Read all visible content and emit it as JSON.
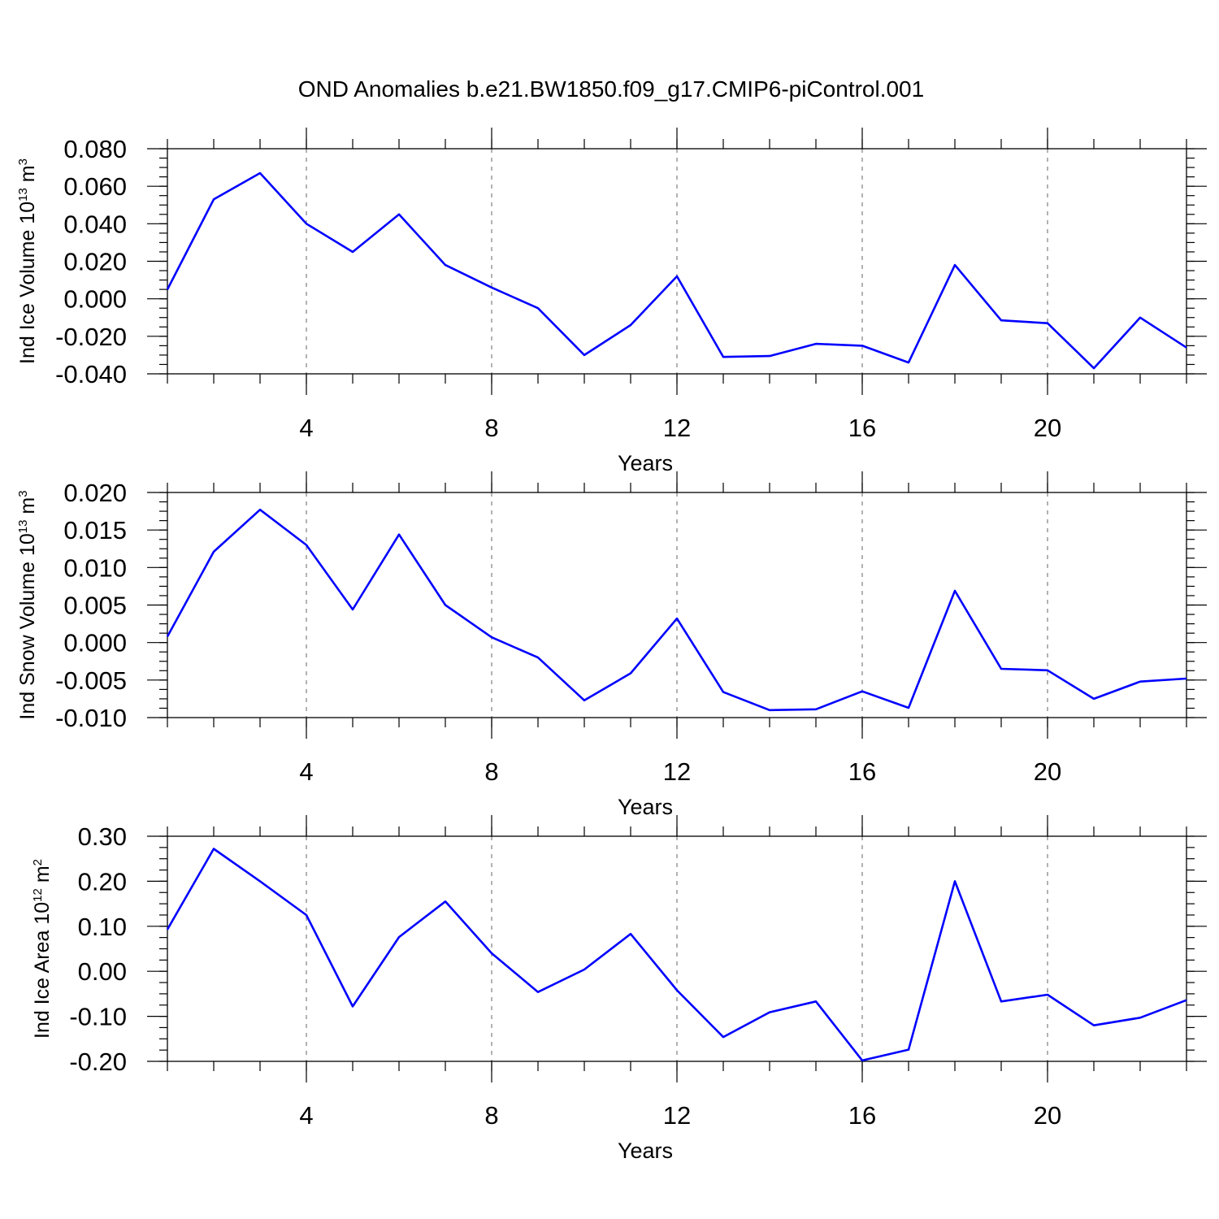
{
  "figure": {
    "title": "OND Anomalies b.e21.BW1850.f09_g17.CMIP6-piControl.001",
    "line_color": "#0000ff"
  },
  "chart_data": [
    {
      "type": "line",
      "title": "",
      "xlabel": "Years",
      "ylabel": {
        "prefix": "Ind Ice Volume 10",
        "exp": "13",
        "unit": " m",
        "unit_exp": "3"
      },
      "x": [
        1,
        2,
        3,
        4,
        5,
        6,
        7,
        8,
        9,
        10,
        11,
        12,
        13,
        14,
        15,
        16,
        17,
        18,
        19,
        20,
        21,
        22,
        23
      ],
      "series": [
        {
          "values": [
            0.005,
            0.053,
            0.067,
            0.04,
            0.025,
            0.045,
            0.018,
            0.006,
            -0.005,
            -0.03,
            -0.014,
            0.012,
            -0.031,
            -0.0305,
            -0.024,
            -0.025,
            -0.034,
            0.018,
            -0.0115,
            -0.013,
            -0.037,
            -0.01,
            -0.026
          ]
        }
      ],
      "xlim": [
        1,
        23
      ],
      "ylim": [
        -0.04,
        0.08
      ],
      "xticks": [
        4,
        8,
        12,
        16,
        20
      ],
      "xtick_labels": [
        "4",
        "8",
        "12",
        "16",
        "20"
      ],
      "yticks": [
        -0.04,
        -0.02,
        0.0,
        0.02,
        0.04,
        0.06,
        0.08
      ],
      "ytick_labels": [
        "-0.040",
        "-0.020",
        "0.000",
        "0.020",
        "0.040",
        "0.060",
        "0.080"
      ],
      "y_minor_step": 0.005,
      "grid": "x-dashed"
    },
    {
      "type": "line",
      "title": "",
      "xlabel": "Years",
      "ylabel": {
        "prefix": "Ind Snow Volume 10",
        "exp": "13",
        "unit": " m",
        "unit_exp": "3"
      },
      "x": [
        1,
        2,
        3,
        4,
        5,
        6,
        7,
        8,
        9,
        10,
        11,
        12,
        13,
        14,
        15,
        16,
        17,
        18,
        19,
        20,
        21,
        22,
        23
      ],
      "series": [
        {
          "values": [
            0.0008,
            0.0121,
            0.0177,
            0.013,
            0.0044,
            0.0144,
            0.005,
            0.0007,
            -0.002,
            -0.0077,
            -0.0041,
            0.0032,
            -0.0066,
            -0.009,
            -0.0089,
            -0.0065,
            -0.0087,
            0.0069,
            -0.0035,
            -0.0037,
            -0.0075,
            -0.0052,
            -0.0048
          ]
        }
      ],
      "xlim": [
        1,
        23
      ],
      "ylim": [
        -0.01,
        0.02
      ],
      "xticks": [
        4,
        8,
        12,
        16,
        20
      ],
      "xtick_labels": [
        "4",
        "8",
        "12",
        "16",
        "20"
      ],
      "yticks": [
        -0.01,
        -0.005,
        0.0,
        0.005,
        0.01,
        0.015,
        0.02
      ],
      "ytick_labels": [
        "-0.010",
        "-0.005",
        "0.000",
        "0.005",
        "0.010",
        "0.015",
        "0.020"
      ],
      "y_minor_step": 0.00125,
      "grid": "x-dashed"
    },
    {
      "type": "line",
      "title": "",
      "xlabel": "Years",
      "ylabel": {
        "prefix": "Ind Ice Area 10",
        "exp": "12",
        "unit": " m",
        "unit_exp": "2"
      },
      "x": [
        1,
        2,
        3,
        4,
        5,
        6,
        7,
        8,
        9,
        10,
        11,
        12,
        13,
        14,
        15,
        16,
        17,
        18,
        19,
        20,
        21,
        22,
        23
      ],
      "series": [
        {
          "values": [
            0.093,
            0.272,
            0.2,
            0.125,
            -0.078,
            0.076,
            0.155,
            0.04,
            -0.046,
            0.004,
            0.083,
            -0.042,
            -0.146,
            -0.091,
            -0.067,
            -0.198,
            -0.174,
            0.2,
            -0.067,
            -0.052,
            -0.12,
            -0.103,
            -0.064
          ]
        }
      ],
      "xlim": [
        1,
        23
      ],
      "ylim": [
        -0.2,
        0.3
      ],
      "xticks": [
        4,
        8,
        12,
        16,
        20
      ],
      "xtick_labels": [
        "4",
        "8",
        "12",
        "16",
        "20"
      ],
      "yticks": [
        -0.2,
        -0.1,
        0.0,
        0.1,
        0.2,
        0.3
      ],
      "ytick_labels": [
        "-0.20",
        "-0.10",
        "0.00",
        "0.10",
        "0.20",
        "0.30"
      ],
      "y_minor_step": 0.025,
      "grid": "x-dashed"
    }
  ]
}
